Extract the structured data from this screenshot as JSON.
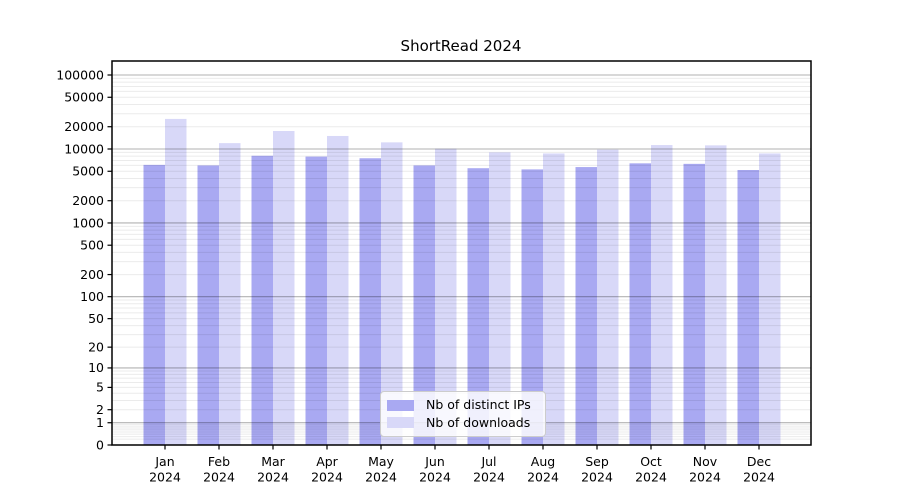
{
  "title": "ShortRead 2024",
  "chart_data": {
    "type": "bar",
    "title": "ShortRead 2024",
    "yscale": "log1p",
    "grid": "horizontal major+minor, drawn above bars",
    "legend_position": "lower center",
    "ylim": [
      0,
      155000
    ],
    "yticks": [
      0,
      1,
      2,
      5,
      10,
      20,
      50,
      100,
      200,
      500,
      1000,
      2000,
      5000,
      10000,
      20000,
      50000,
      100000
    ],
    "categories": [
      "Jan 2024",
      "Feb 2024",
      "Mar 2024",
      "Apr 2024",
      "May 2024",
      "Jun 2024",
      "Jul 2024",
      "Aug 2024",
      "Sep 2024",
      "Oct 2024",
      "Nov 2024",
      "Dec 2024"
    ],
    "series": [
      {
        "name": "Nb of distinct IPs",
        "color": "#a9a9f2",
        "values": [
          6100,
          6000,
          8100,
          7900,
          7500,
          6000,
          5500,
          5300,
          5700,
          6400,
          6300,
          5200
        ]
      },
      {
        "name": "Nb of downloads",
        "color": "#d8d8f8",
        "values": [
          25500,
          12000,
          17500,
          15000,
          12300,
          10100,
          9000,
          8700,
          9800,
          11300,
          11200,
          8700
        ]
      }
    ]
  }
}
